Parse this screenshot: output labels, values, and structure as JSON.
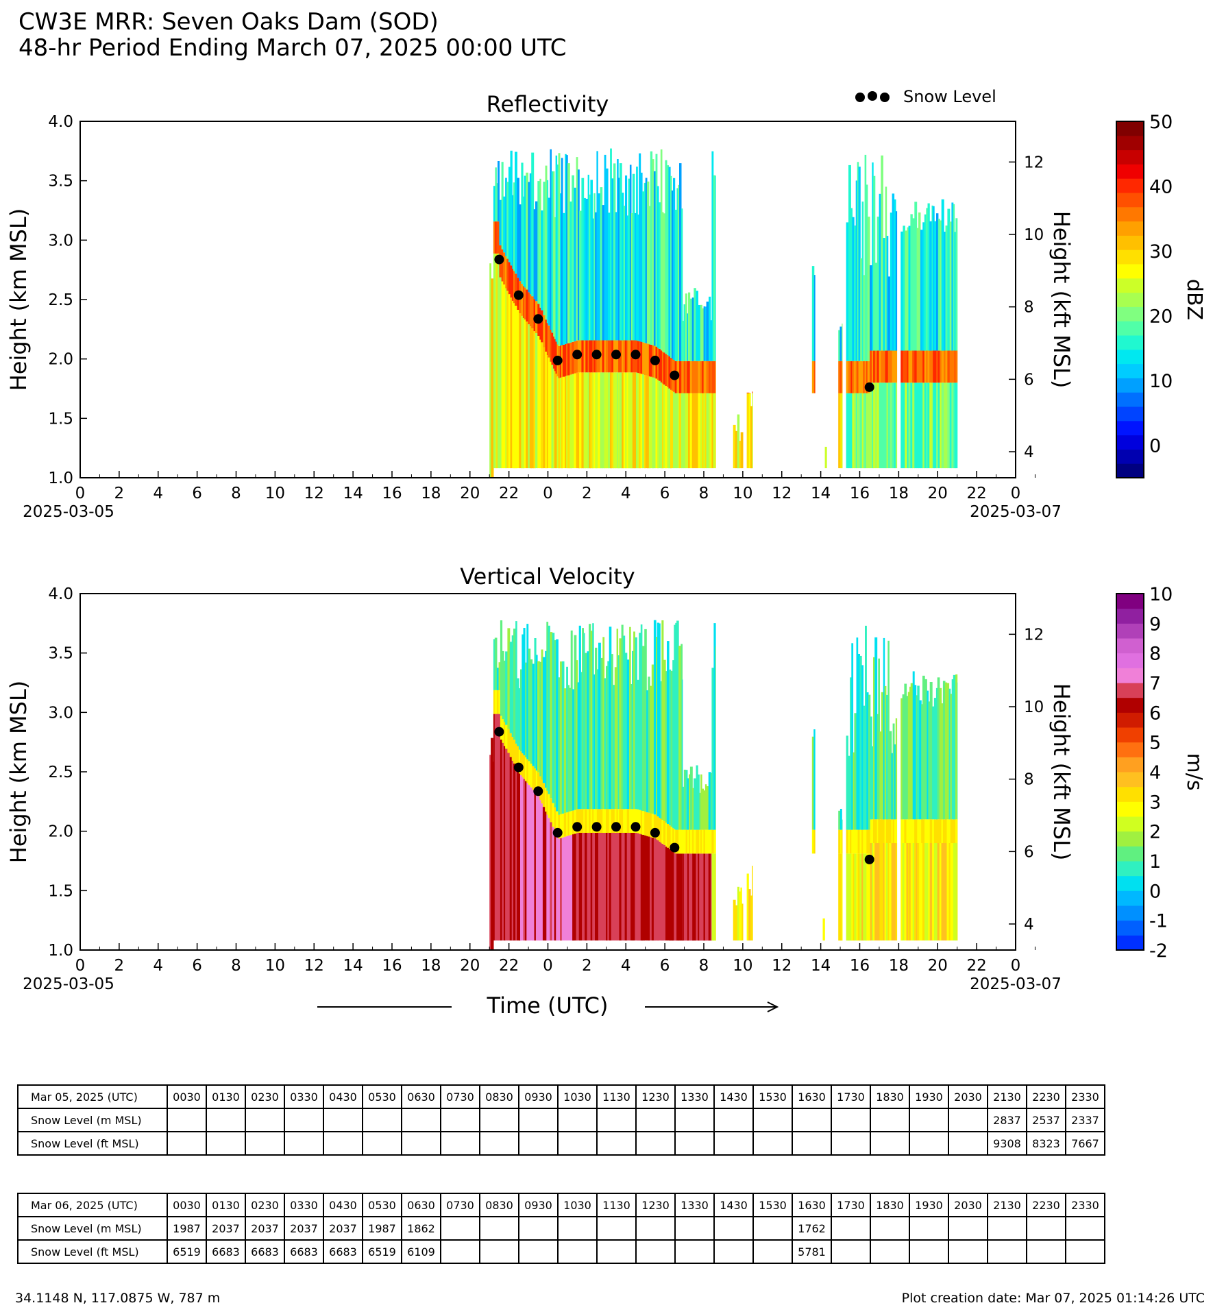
{
  "header": {
    "title": "CW3E MRR: Seven Oaks Dam (SOD)",
    "subtitle": "48-hr Period Ending March 07, 2025 00:00 UTC"
  },
  "legend": {
    "label": "Snow Level"
  },
  "colors": {
    "snow_level_marker": "#000000",
    "dbz_scale": [
      "#000080",
      "#0000b0",
      "#0000dd",
      "#0014ff",
      "#0044ff",
      "#0070ff",
      "#00a0ff",
      "#00ccff",
      "#00e8f0",
      "#20f8d0",
      "#50ffa8",
      "#80ff80",
      "#a8ff50",
      "#ccff28",
      "#ffff00",
      "#ffe000",
      "#ffc000",
      "#ffa000",
      "#ff7800",
      "#ff5000",
      "#ff2800",
      "#f00000",
      "#c80000",
      "#a00000",
      "#800000"
    ],
    "vel_scale": [
      "#0030ff",
      "#0060ff",
      "#0090ff",
      "#00b8ff",
      "#00e0f0",
      "#30f0c0",
      "#60f080",
      "#a0f040",
      "#d0ff20",
      "#ffff00",
      "#ffe000",
      "#ffc020",
      "#ffa020",
      "#ff7010",
      "#f04000",
      "#d01c00",
      "#b00000",
      "#d84058",
      "#f080d8",
      "#e070e0",
      "#d060d0",
      "#b040b8",
      "#9020a0",
      "#800080"
    ]
  },
  "chart_data": [
    {
      "type": "heatmap",
      "title": "Reflectivity",
      "ylabel": "Height (km MSL)",
      "ylabel_right": "Height (kft MSL)",
      "colorbar_label": "dBZ",
      "ylim": [
        1.0,
        4.0
      ],
      "y_ticks": [
        "1.0",
        "1.5",
        "2.0",
        "2.5",
        "3.0",
        "3.5",
        "4.0"
      ],
      "y_right_ticks": [
        "4",
        "6",
        "8",
        "10",
        "12"
      ],
      "y_right_values": [
        4,
        6,
        8,
        10,
        12
      ],
      "x_ticks": [
        "0",
        "2",
        "4",
        "6",
        "8",
        "10",
        "12",
        "14",
        "16",
        "18",
        "20",
        "22",
        "0",
        "2",
        "4",
        "6",
        "8",
        "10",
        "12",
        "14",
        "16",
        "18",
        "20",
        "22",
        "0"
      ],
      "x_start_label": "2025-03-05",
      "x_end_label": "2025-03-07",
      "colorbar_range": [
        -5,
        50
      ],
      "colorbar_ticks": [
        "0",
        "10",
        "20",
        "30",
        "40",
        "50"
      ],
      "colorbar_values": [
        0,
        10,
        20,
        30,
        40,
        50
      ],
      "snow_level_points": [
        {
          "hour": 21.5,
          "km": 2.837
        },
        {
          "hour": 22.5,
          "km": 2.537
        },
        {
          "hour": 23.5,
          "km": 2.337
        },
        {
          "hour": 24.5,
          "km": 1.987
        },
        {
          "hour": 25.5,
          "km": 2.037
        },
        {
          "hour": 26.5,
          "km": 2.037
        },
        {
          "hour": 27.5,
          "km": 2.037
        },
        {
          "hour": 28.5,
          "km": 2.037
        },
        {
          "hour": 29.5,
          "km": 1.987
        },
        {
          "hour": 30.5,
          "km": 1.862
        },
        {
          "hour": 40.5,
          "km": 1.762
        }
      ]
    },
    {
      "type": "heatmap",
      "title": "Vertical Velocity",
      "ylabel": "Height (km MSL)",
      "ylabel_right": "Height (kft MSL)",
      "colorbar_label": "m/s",
      "xlabel": "Time (UTC)",
      "ylim": [
        1.0,
        4.0
      ],
      "y_ticks": [
        "1.0",
        "1.5",
        "2.0",
        "2.5",
        "3.0",
        "3.5",
        "4.0"
      ],
      "y_right_ticks": [
        "4",
        "6",
        "8",
        "10",
        "12"
      ],
      "y_right_values": [
        4,
        6,
        8,
        10,
        12
      ],
      "x_ticks": [
        "0",
        "2",
        "4",
        "6",
        "8",
        "10",
        "12",
        "14",
        "16",
        "18",
        "20",
        "22",
        "0",
        "2",
        "4",
        "6",
        "8",
        "10",
        "12",
        "14",
        "16",
        "18",
        "20",
        "22",
        "0"
      ],
      "x_start_label": "2025-03-05",
      "x_end_label": "2025-03-07",
      "colorbar_range": [
        -2,
        10
      ],
      "colorbar_ticks": [
        "-2",
        "-1",
        "0",
        "1",
        "2",
        "3",
        "4",
        "5",
        "6",
        "7",
        "8",
        "9",
        "10"
      ],
      "colorbar_values": [
        -2,
        -1,
        0,
        1,
        2,
        3,
        4,
        5,
        6,
        7,
        8,
        9,
        10
      ],
      "snow_level_points": [
        {
          "hour": 21.5,
          "km": 2.837
        },
        {
          "hour": 22.5,
          "km": 2.537
        },
        {
          "hour": 23.5,
          "km": 2.337
        },
        {
          "hour": 24.5,
          "km": 1.987
        },
        {
          "hour": 25.5,
          "km": 2.037
        },
        {
          "hour": 26.5,
          "km": 2.037
        },
        {
          "hour": 27.5,
          "km": 2.037
        },
        {
          "hour": 28.5,
          "km": 2.037
        },
        {
          "hour": 29.5,
          "km": 1.987
        },
        {
          "hour": 30.5,
          "km": 1.862
        },
        {
          "hour": 40.5,
          "km": 1.762
        }
      ]
    }
  ],
  "tables": [
    {
      "date_label": "Mar 05, 2025 (UTC)",
      "times": [
        "0030",
        "0130",
        "0230",
        "0330",
        "0430",
        "0530",
        "0630",
        "0730",
        "0830",
        "0930",
        "1030",
        "1130",
        "1230",
        "1330",
        "1430",
        "1530",
        "1630",
        "1730",
        "1830",
        "1930",
        "2030",
        "2130",
        "2230",
        "2330"
      ],
      "m_label": "Snow Level (m MSL)",
      "m": [
        "",
        "",
        "",
        "",
        "",
        "",
        "",
        "",
        "",
        "",
        "",
        "",
        "",
        "",
        "",
        "",
        "",
        "",
        "",
        "",
        "",
        "2837",
        "2537",
        "2337"
      ],
      "ft_label": "Snow Level (ft MSL)",
      "ft": [
        "",
        "",
        "",
        "",
        "",
        "",
        "",
        "",
        "",
        "",
        "",
        "",
        "",
        "",
        "",
        "",
        "",
        "",
        "",
        "",
        "",
        "9308",
        "8323",
        "7667"
      ]
    },
    {
      "date_label": "Mar 06, 2025 (UTC)",
      "times": [
        "0030",
        "0130",
        "0230",
        "0330",
        "0430",
        "0530",
        "0630",
        "0730",
        "0830",
        "0930",
        "1030",
        "1130",
        "1230",
        "1330",
        "1430",
        "1530",
        "1630",
        "1730",
        "1830",
        "1930",
        "2030",
        "2130",
        "2230",
        "2330"
      ],
      "m_label": "Snow Level (m MSL)",
      "m": [
        "1987",
        "2037",
        "2037",
        "2037",
        "2037",
        "1987",
        "1862",
        "",
        "",
        "",
        "",
        "",
        "",
        "",
        "",
        "",
        "1762",
        "",
        "",
        "",
        "",
        "",
        "",
        ""
      ],
      "ft_label": "Snow Level (ft MSL)",
      "ft": [
        "6519",
        "6683",
        "6683",
        "6683",
        "6683",
        "6519",
        "6109",
        "",
        "",
        "",
        "",
        "",
        "",
        "",
        "",
        "",
        "5781",
        "",
        "",
        "",
        "",
        "",
        "",
        ""
      ]
    }
  ],
  "footer": {
    "location": "34.1148 N, 117.0875 W, 787 m",
    "creation_date": "Plot creation date: Mar 07, 2025 01:14:26 UTC"
  }
}
